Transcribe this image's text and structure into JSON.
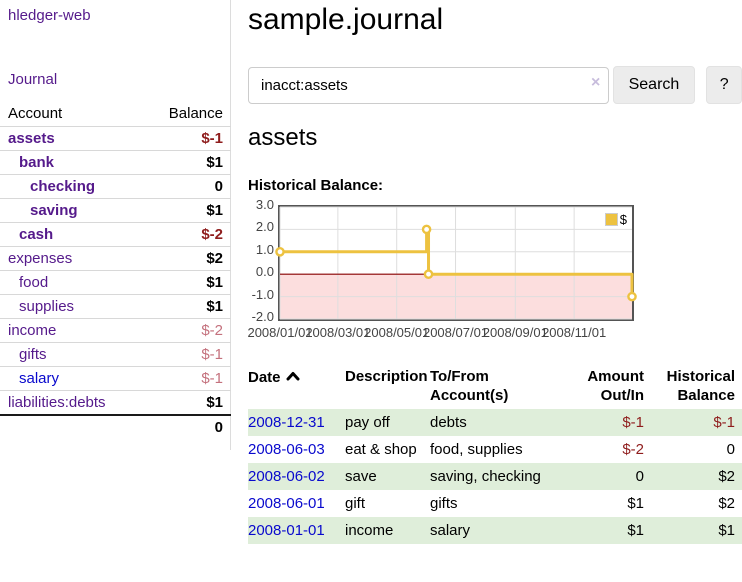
{
  "app": {
    "brand": "hledger-web"
  },
  "sidebar": {
    "nav": {
      "journal": "Journal"
    },
    "accounts": {
      "header_account": "Account",
      "header_balance": "Balance",
      "rows": [
        {
          "name": "assets",
          "level": 1,
          "bold": true,
          "balance": "$-1",
          "balance_style": "neg-strong",
          "link_color": "purple"
        },
        {
          "name": "bank",
          "level": 2,
          "bold": true,
          "balance": "$1",
          "balance_style": "pos",
          "link_color": "purple"
        },
        {
          "name": "checking",
          "level": 3,
          "bold": true,
          "balance": "0",
          "balance_style": "pos",
          "link_color": "purple"
        },
        {
          "name": "saving",
          "level": 3,
          "bold": true,
          "balance": "$1",
          "balance_style": "pos",
          "link_color": "purple"
        },
        {
          "name": "cash",
          "level": 2,
          "bold": true,
          "balance": "$-2",
          "balance_style": "neg-strong",
          "link_color": "purple"
        },
        {
          "name": "expenses",
          "level": 1,
          "bold": false,
          "balance": "$2",
          "balance_style": "pos",
          "link_color": "purple"
        },
        {
          "name": "food",
          "level": 2,
          "bold": false,
          "balance": "$1",
          "balance_style": "pos",
          "link_color": "purple"
        },
        {
          "name": "supplies",
          "level": 2,
          "bold": false,
          "balance": "$1",
          "balance_style": "pos",
          "link_color": "purple"
        },
        {
          "name": "income",
          "level": 1,
          "bold": false,
          "balance": "$-2",
          "balance_style": "neg-soft",
          "link_color": "purple"
        },
        {
          "name": "gifts",
          "level": 2,
          "bold": false,
          "balance": "$-1",
          "balance_style": "neg-soft",
          "link_color": "purple"
        },
        {
          "name": "salary",
          "level": 2,
          "bold": false,
          "balance": "$-1",
          "balance_style": "neg-soft",
          "link_color": "blue"
        },
        {
          "name": "liabilities:debts",
          "level": 1,
          "bold": false,
          "balance": "$1",
          "balance_style": "pos",
          "link_color": "purple"
        }
      ],
      "total": "0"
    }
  },
  "main": {
    "title": "sample.journal",
    "search": {
      "value": "inacct:assets",
      "clear_icon": "×",
      "search_button": "Search",
      "help_button": "?"
    },
    "account_title": "assets",
    "chart_label": "Historical Balance:"
  },
  "chart_data": {
    "type": "line",
    "step": true,
    "title": "Historical Balance:",
    "series": [
      {
        "name": "$",
        "color": "#edc240",
        "points": [
          [
            "2008-01-01",
            1
          ],
          [
            "2008-06-01",
            2
          ],
          [
            "2008-06-02",
            2
          ],
          [
            "2008-06-03",
            0
          ],
          [
            "2008-12-31",
            -1
          ]
        ]
      }
    ],
    "xlim": [
      "2008-01-01",
      "2008-12-31"
    ],
    "ylim": [
      -2,
      3
    ],
    "y_ticks": [
      "3.0",
      "2.0",
      "1.0",
      "0.0",
      "-1.0",
      "-2.0"
    ],
    "x_ticks": [
      "2008/01/01",
      "2008/03/01",
      "2008/05/01",
      "2008/07/01",
      "2008/09/01",
      "2008/11/01"
    ],
    "grid": true,
    "legend_position": "top-right",
    "zero_line_color": "#8b0000",
    "negative_region_fill": "#fcdede"
  },
  "register": {
    "headers": {
      "date": "Date",
      "description": "Description",
      "accounts": "To/From Account(s)",
      "amount": "Amount Out/In",
      "balance": "Historical Balance"
    },
    "rows": [
      {
        "date": "2008-12-31",
        "description": "pay off",
        "accounts": "debts",
        "amount": "$-1",
        "amount_negative": true,
        "balance": "$-1",
        "balance_negative": true,
        "highlighted": true
      },
      {
        "date": "2008-06-03",
        "description": "eat & shop",
        "accounts": "food, supplies",
        "amount": "$-2",
        "amount_negative": true,
        "balance": "0",
        "balance_negative": false,
        "highlighted": false
      },
      {
        "date": "2008-06-02",
        "description": "save",
        "accounts": "saving, checking",
        "amount": "0",
        "amount_negative": false,
        "balance": "$2",
        "balance_negative": false,
        "highlighted": true
      },
      {
        "date": "2008-06-01",
        "description": "gift",
        "accounts": "gifts",
        "amount": "$1",
        "amount_negative": false,
        "balance": "$2",
        "balance_negative": false,
        "highlighted": false
      },
      {
        "date": "2008-01-01",
        "description": "income",
        "accounts": "salary",
        "amount": "$1",
        "amount_negative": false,
        "balance": "$1",
        "balance_negative": false,
        "highlighted": true
      }
    ]
  },
  "colors": {
    "link_purple": "#551a8b",
    "link_blue": "#0909cd",
    "negative_strong": "#8f1d1d",
    "negative_soft": "#c4717d",
    "row_highlight_green": "#dfeeda",
    "chart_line": "#edc240",
    "chart_border": "#545454"
  }
}
